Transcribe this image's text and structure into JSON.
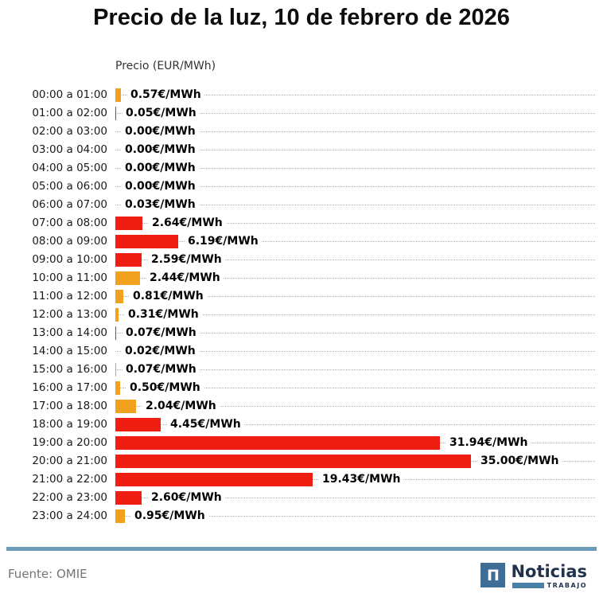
{
  "title": "Precio de la luz, 10 de febrero de 2026",
  "axis_label": "Precio (EUR/MWh)",
  "footer": {
    "source": "Fuente: OMIE",
    "logo": {
      "name": "Noticias Trabajo",
      "icon": "noticias-n-icon",
      "icon_glyph": "Π",
      "text_main": "Noticias",
      "text_sub": "TRABAJO"
    }
  },
  "colors": {
    "red": "#F01E10",
    "orange": "#F2A11E",
    "green": "#3B7D23",
    "none": "transparent",
    "divider": "#6C9CB8",
    "logo_square": "#3E6E96",
    "logo_navy": "#21324F",
    "logo_bar": "#4A80A6"
  },
  "chart_data": {
    "type": "bar",
    "orientation": "horizontal",
    "title": "Precio de la luz, 10 de febrero de 2026",
    "xlabel": "Precio (EUR/MWh)",
    "ylabel": "",
    "xlim": [
      0,
      35.8
    ],
    "grid": "dotted-row-leaders",
    "legend": "none",
    "categories": [
      "00:00 a 01:00",
      "01:00 a 02:00",
      "02:00 a 03:00",
      "03:00 a 04:00",
      "04:00 a 05:00",
      "05:00 a 06:00",
      "06:00 a 07:00",
      "07:00 a 08:00",
      "08:00 a 09:00",
      "09:00 a 10:00",
      "10:00 a 11:00",
      "11:00 a 12:00",
      "12:00 a 13:00",
      "13:00 a 14:00",
      "14:00 a 15:00",
      "15:00 a 16:00",
      "16:00 a 17:00",
      "17:00 a 18:00",
      "18:00 a 19:00",
      "19:00 a 20:00",
      "20:00 a 21:00",
      "21:00 a 22:00",
      "22:00 a 23:00",
      "23:00 a 24:00"
    ],
    "values": [
      0.57,
      0.05,
      0.0,
      0.0,
      0.0,
      0.0,
      0.03,
      2.64,
      6.19,
      2.59,
      2.44,
      0.81,
      0.31,
      0.07,
      0.02,
      0.07,
      0.5,
      2.04,
      4.45,
      31.94,
      35.0,
      19.43,
      2.6,
      0.95
    ],
    "value_labels": [
      "0.57€/MWh",
      "0.05€/MWh",
      "0.00€/MWh",
      "0.00€/MWh",
      "0.00€/MWh",
      "0.00€/MWh",
      "0.03€/MWh",
      "2.64€/MWh",
      "6.19€/MWh",
      "2.59€/MWh",
      "2.44€/MWh",
      "0.81€/MWh",
      "0.31€/MWh",
      "0.07€/MWh",
      "0.02€/MWh",
      "0.07€/MWh",
      "0.50€/MWh",
      "2.04€/MWh",
      "4.45€/MWh",
      "31.94€/MWh",
      "35.00€/MWh",
      "19.43€/MWh",
      "2.60€/MWh",
      "0.95€/MWh"
    ],
    "bar_colors": [
      "orange",
      "green",
      "none",
      "none",
      "none",
      "none",
      "green",
      "red",
      "red",
      "red",
      "orange",
      "orange",
      "orange",
      "green",
      "green",
      "orange",
      "orange",
      "orange",
      "red",
      "red",
      "red",
      "red",
      "red",
      "orange"
    ]
  }
}
